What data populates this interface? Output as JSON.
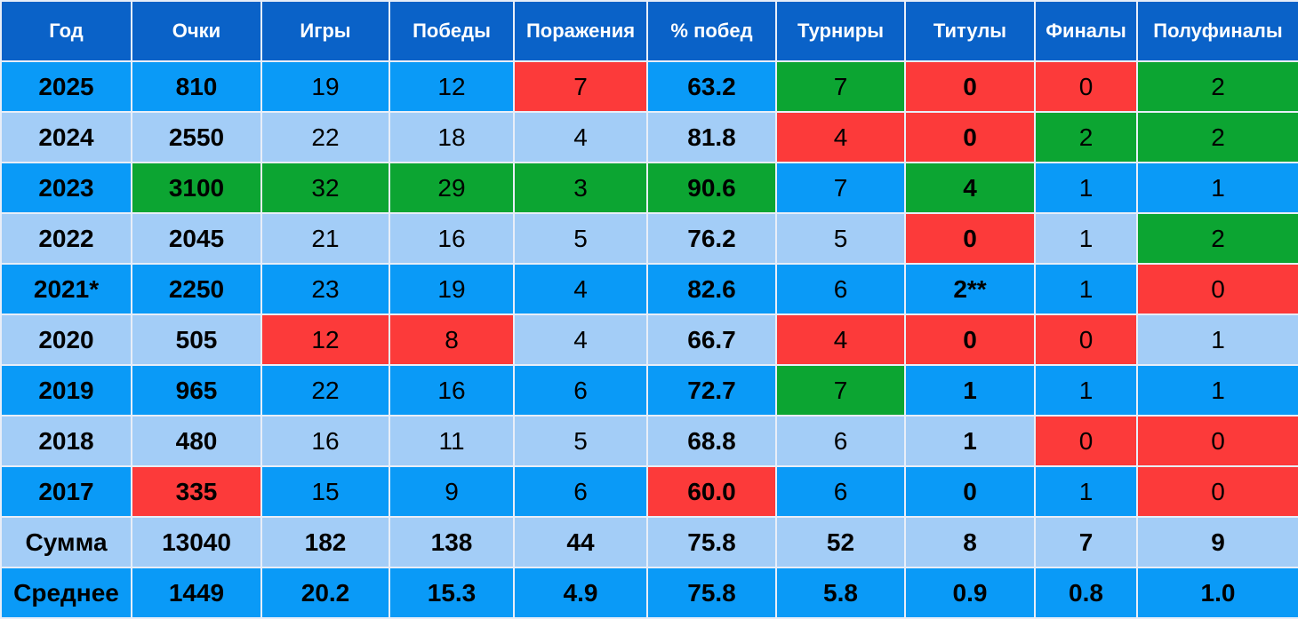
{
  "colors": {
    "header": "#0a62c8",
    "row_dark": "#0a9af7",
    "row_light": "#a3cdf7",
    "best": "#0ca532",
    "worst": "#fc3a3a"
  },
  "headers": [
    "Год",
    "Очки",
    "Игры",
    "Победы",
    "Поражения",
    "% побед",
    "Турниры",
    "Титулы",
    "Финалы",
    "Полуфиналы"
  ],
  "rows": [
    [
      "2025",
      "810",
      "19",
      "12",
      "7",
      "63.2",
      "7",
      "0",
      "0",
      "2"
    ],
    [
      "2024",
      "2550",
      "22",
      "18",
      "4",
      "81.8",
      "4",
      "0",
      "2",
      "2"
    ],
    [
      "2023",
      "3100",
      "32",
      "29",
      "3",
      "90.6",
      "7",
      "4",
      "1",
      "1"
    ],
    [
      "2022",
      "2045",
      "21",
      "16",
      "5",
      "76.2",
      "5",
      "0",
      "1",
      "2"
    ],
    [
      "2021*",
      "2250",
      "23",
      "19",
      "4",
      "82.6",
      "6",
      "2**",
      "1",
      "0"
    ],
    [
      "2020",
      "505",
      "12",
      "8",
      "4",
      "66.7",
      "4",
      "0",
      "0",
      "1"
    ],
    [
      "2019",
      "965",
      "22",
      "16",
      "6",
      "72.7",
      "7",
      "1",
      "1",
      "1"
    ],
    [
      "2018",
      "480",
      "16",
      "11",
      "5",
      "68.8",
      "6",
      "1",
      "0",
      "0"
    ],
    [
      "2017",
      "335",
      "15",
      "9",
      "6",
      "60.0",
      "6",
      "0",
      "1",
      "0"
    ]
  ],
  "highlights": [
    [
      "",
      "",
      "",
      "",
      "r",
      "",
      "g",
      "r",
      "r",
      "g"
    ],
    [
      "",
      "",
      "",
      "",
      "",
      "",
      "r",
      "r",
      "g",
      "g"
    ],
    [
      "",
      "g",
      "g",
      "g",
      "g",
      "g",
      "",
      "g",
      "",
      ""
    ],
    [
      "",
      "",
      "",
      "",
      "",
      "",
      "",
      "r",
      "",
      "g"
    ],
    [
      "",
      "",
      "",
      "",
      "",
      "",
      "",
      "",
      "",
      "r"
    ],
    [
      "",
      "",
      "r",
      "r",
      "",
      "",
      "r",
      "r",
      "r",
      ""
    ],
    [
      "",
      "",
      "",
      "",
      "",
      "",
      "g",
      "",
      "",
      ""
    ],
    [
      "",
      "",
      "",
      "",
      "",
      "",
      "",
      "",
      "r",
      "r"
    ],
    [
      "",
      "r",
      "",
      "",
      "",
      "r",
      "",
      "",
      "",
      "r"
    ]
  ],
  "totals": {
    "sum": [
      "Сумма",
      "13040",
      "182",
      "138",
      "44",
      "75.8",
      "52",
      "8",
      "7",
      "9"
    ],
    "avg": [
      "Среднее",
      "1449",
      "20.2",
      "15.3",
      "4.9",
      "75.8",
      "5.8",
      "0.9",
      "0.8",
      "1.0"
    ]
  }
}
